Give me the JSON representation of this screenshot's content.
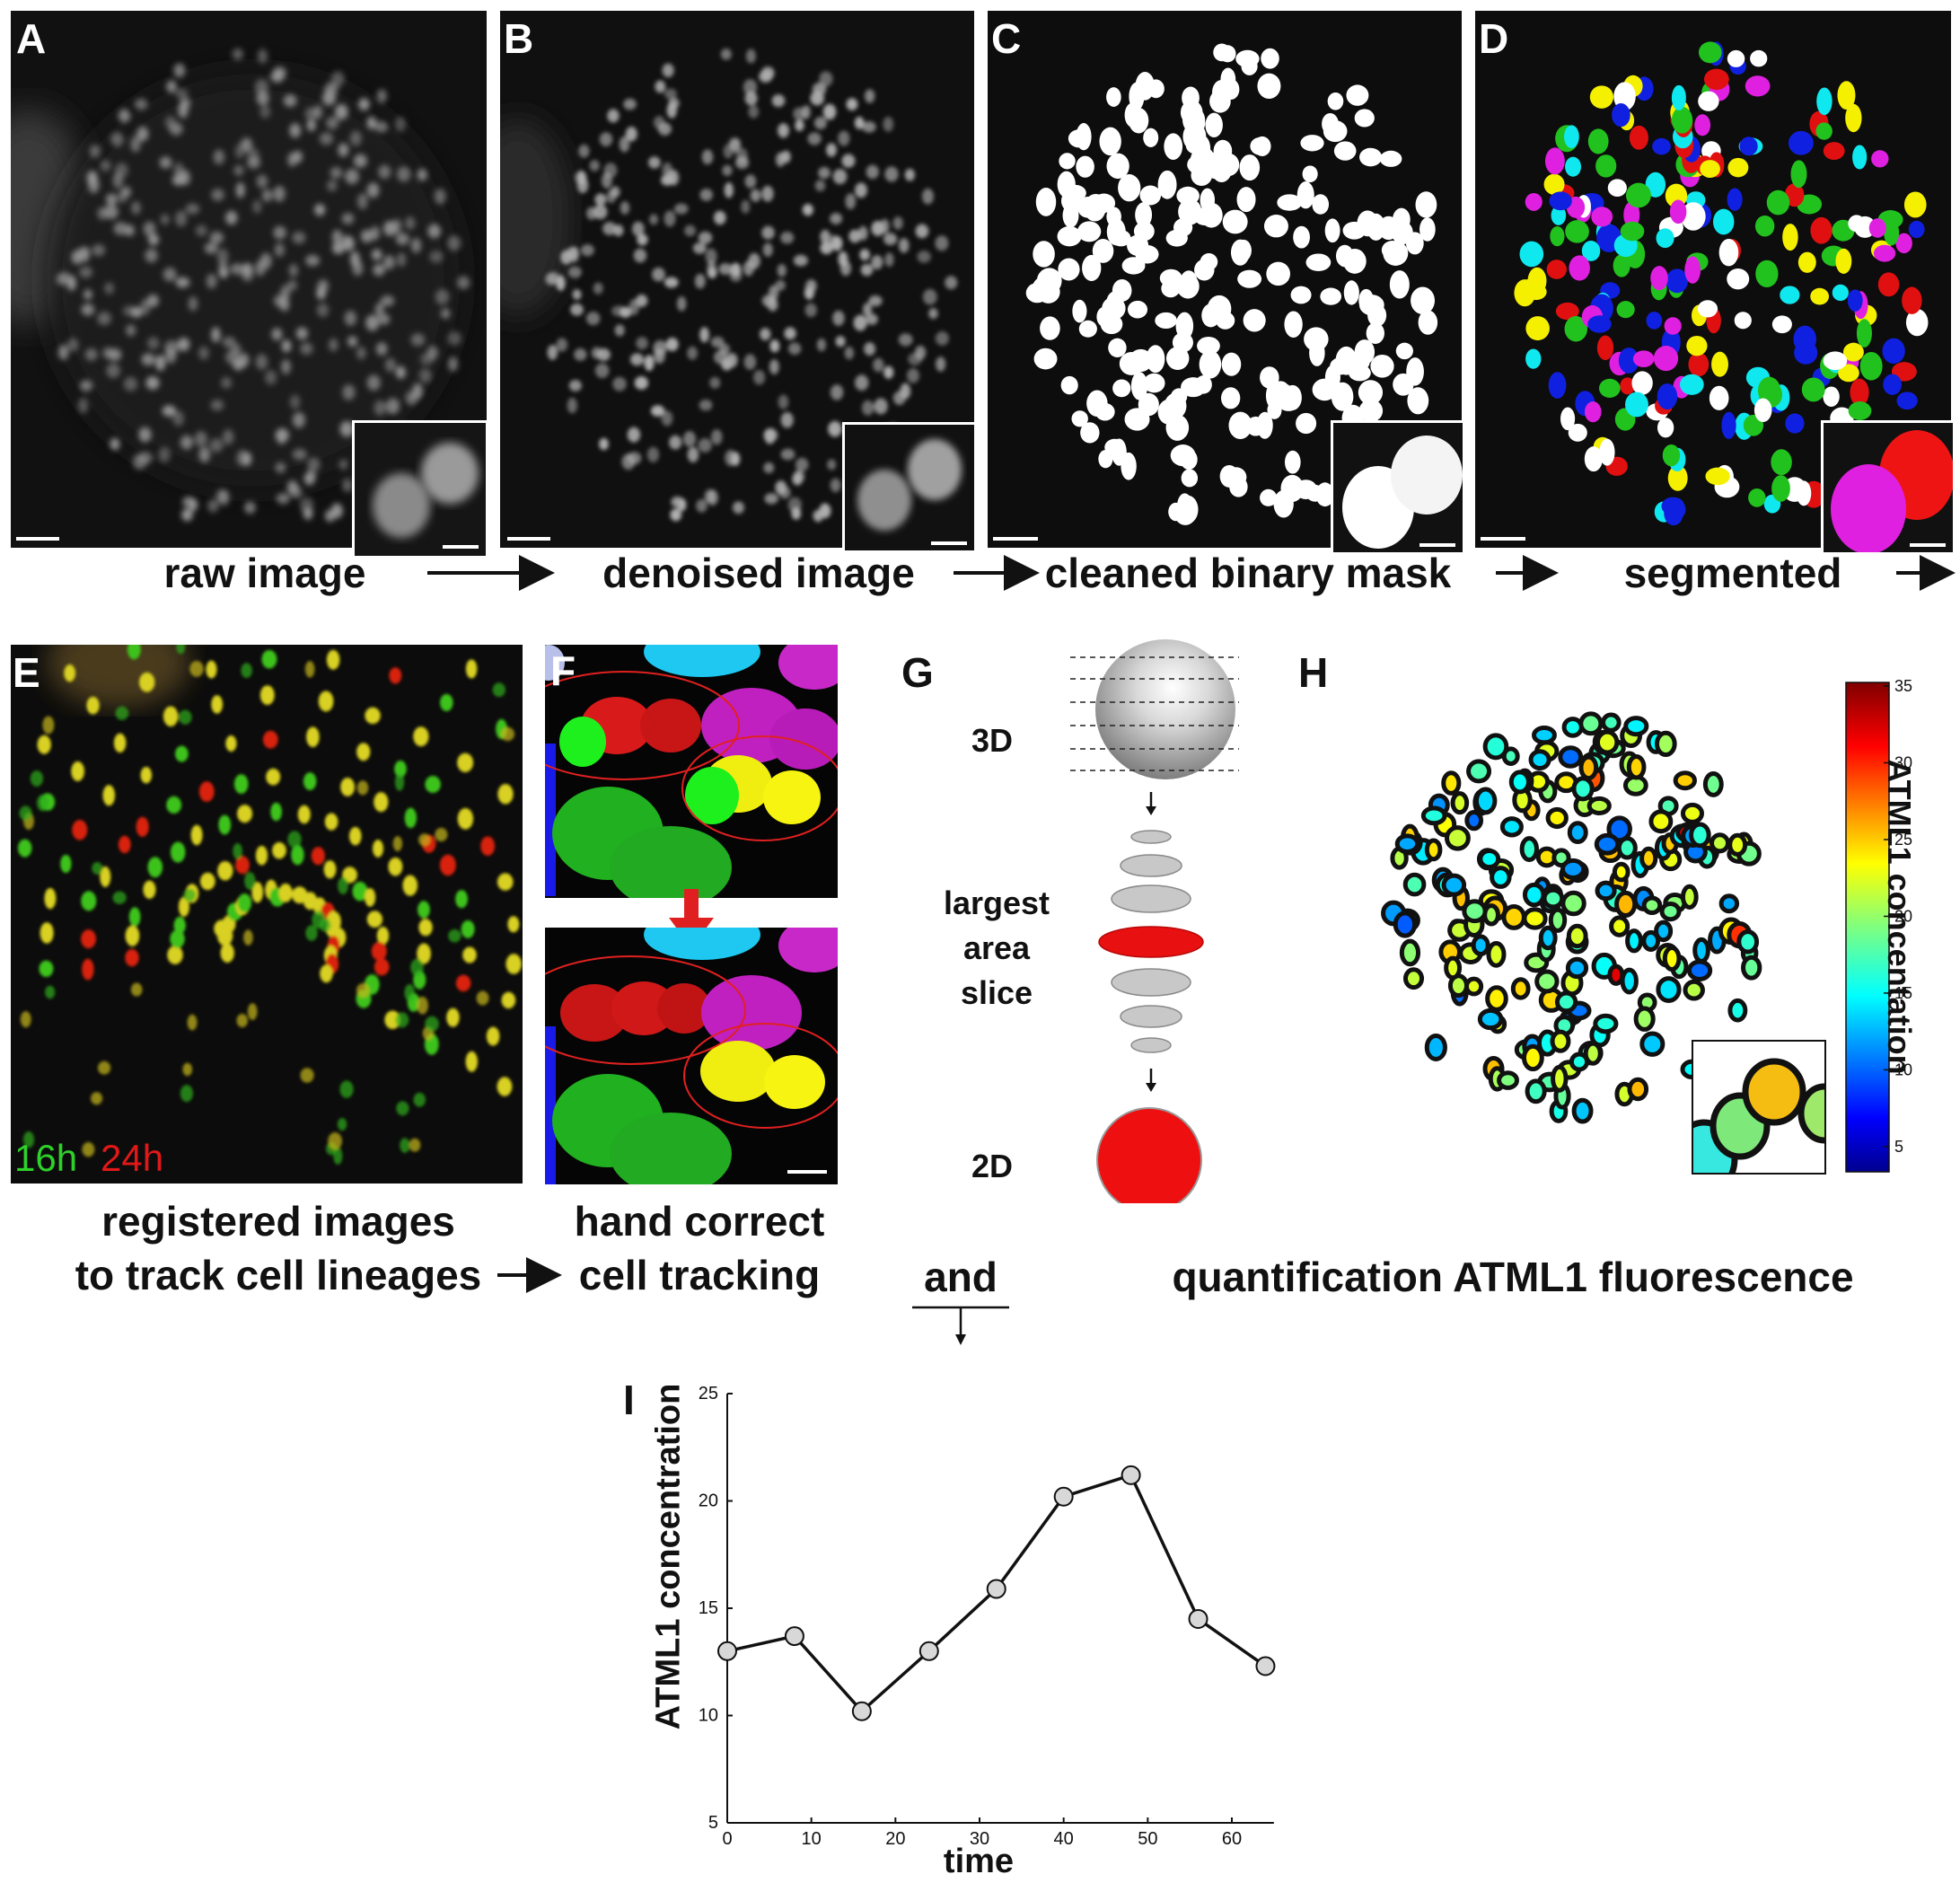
{
  "panels": {
    "A": {
      "label": "A",
      "caption": "raw image"
    },
    "B": {
      "label": "B",
      "caption": "denoised image"
    },
    "C": {
      "label": "C",
      "caption": "cleaned binary mask"
    },
    "D": {
      "label": "D",
      "caption": "segmented"
    },
    "E": {
      "label": "E",
      "caption_line1": "registered images",
      "caption_line2": "to track cell lineages",
      "legend_green": "16h",
      "legend_red": "24h"
    },
    "F": {
      "label": "F",
      "caption_line1": "hand correct",
      "caption_line2": "cell tracking"
    },
    "G": {
      "label": "G",
      "label_3d": "3D",
      "slice_line1": "largest",
      "slice_line2": "area",
      "slice_line3": "slice",
      "label_2d": "2D"
    },
    "H": {
      "label": "H",
      "colorbar_title": "ATML1 concentation",
      "colorbar_ticks": [
        "35",
        "30",
        "25",
        "20",
        "15",
        "10",
        "5"
      ],
      "caption": "quantification ATML1 fluorescence"
    },
    "I": {
      "label": "I"
    }
  },
  "connector": {
    "and_label": "and"
  },
  "colors": {
    "green": "#22c21e",
    "red": "#e01010",
    "magenta": "#e020e0",
    "yellow": "#f5f000",
    "cyan": "#10e8f0",
    "blue": "#1020e0"
  },
  "chart_data": {
    "type": "line",
    "xlabel": "time",
    "ylabel": "ATML1 concentration",
    "x": [
      0,
      8,
      16,
      24,
      32,
      40,
      48,
      56,
      64
    ],
    "series": [
      {
        "values": [
          13.0,
          13.7,
          10.2,
          13.0,
          15.9,
          20.2,
          21.2,
          14.5,
          12.3
        ]
      }
    ],
    "xlim": [
      0,
      65
    ],
    "ylim": [
      5,
      25
    ],
    "xticks": [
      "0",
      "10",
      "20",
      "30",
      "40",
      "50",
      "60"
    ],
    "yticks": [
      "5",
      "10",
      "15",
      "20",
      "25"
    ],
    "grid": false
  }
}
